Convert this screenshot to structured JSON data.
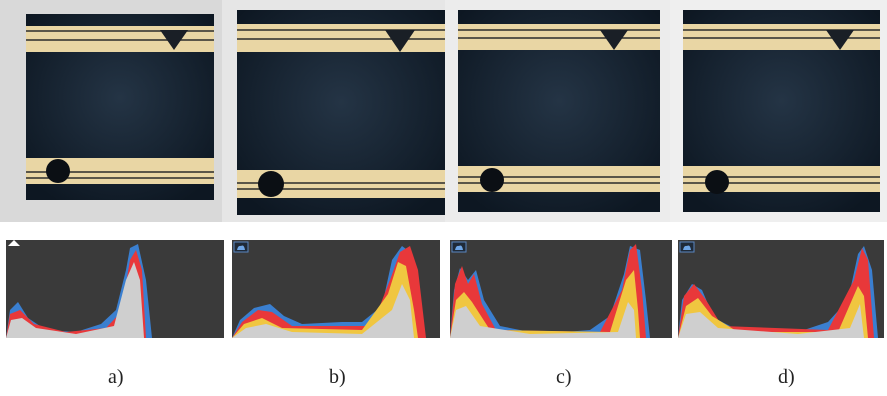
{
  "panels": [
    {
      "id": "a",
      "caption": "a)",
      "histogram_peaks": [
        "dark-tones",
        "light-tones"
      ],
      "histogram_icon": "triangle-warning-icon"
    },
    {
      "id": "b",
      "caption": "b)",
      "histogram_peaks": [
        "dark-tones",
        "light-tones"
      ],
      "histogram_icon": "cloud-icon"
    },
    {
      "id": "c",
      "caption": "c)",
      "histogram_peaks": [
        "dark-tones",
        "light-tones"
      ],
      "histogram_icon": "cloud-icon"
    },
    {
      "id": "d",
      "caption": "d)",
      "histogram_peaks": [
        "dark-tones",
        "light-tones"
      ],
      "histogram_icon": "cloud-icon"
    }
  ],
  "colors": {
    "panel_black": "#0f1a24",
    "stripe_cream": "#e9d6a4",
    "histogram_bg": "#3a3a3a",
    "hist_gray": "#cfcfcf",
    "hist_blue": "#3a7fd0",
    "hist_red": "#e8383a",
    "hist_yellow": "#f0c640",
    "hist_green": "#4caf50",
    "hist_cyan": "#43c2e0"
  }
}
